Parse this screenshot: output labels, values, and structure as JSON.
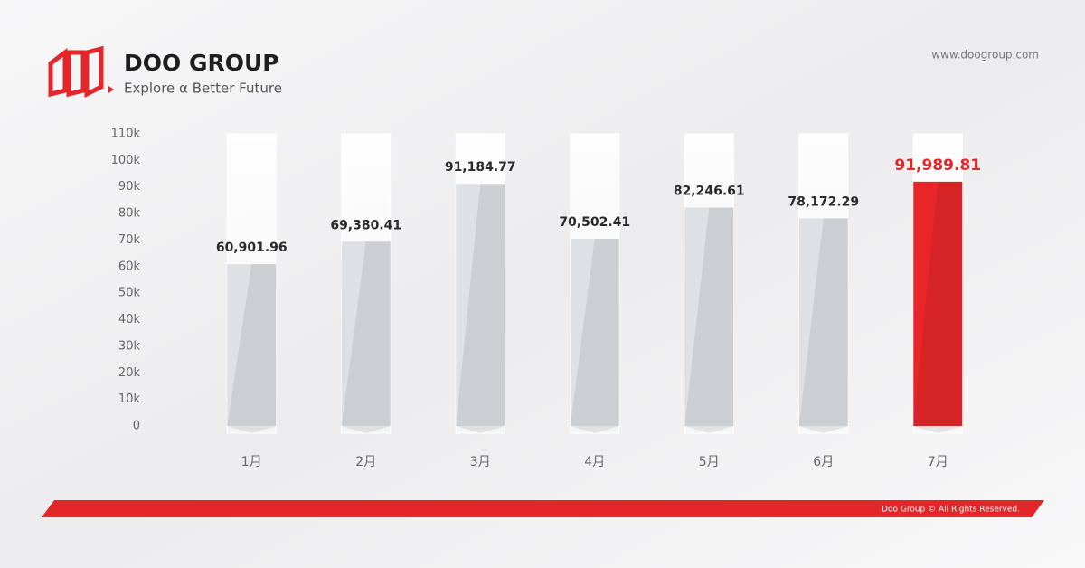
{
  "header": {
    "brand": "DOO GROUP",
    "tagline": "Explore α Better Future",
    "website": "www.doogroup.com"
  },
  "footer": {
    "copyright": "Doo Group © All Rights Reserved."
  },
  "chart_data": {
    "type": "bar",
    "categories": [
      "1月",
      "2月",
      "3月",
      "4月",
      "5月",
      "6月",
      "7月"
    ],
    "values": [
      60901.96,
      69380.41,
      91184.77,
      70502.41,
      82246.61,
      78172.29,
      91989.81
    ],
    "value_labels": [
      "60,901.96",
      "69,380.41",
      "91,184.77",
      "70,502.41",
      "82,246.61",
      "78,172.29",
      "91,989.81"
    ],
    "colors": [
      "#dde1e5",
      "#dde1e5",
      "#dde1e5",
      "#dde1e5",
      "#dde1e5",
      "#dde1e5",
      "#e8262a"
    ],
    "label_colors": [
      "#2a2a2a",
      "#2a2a2a",
      "#2a2a2a",
      "#2a2a2a",
      "#2a2a2a",
      "#2a2a2a",
      "#e3262a"
    ],
    "ylim": [
      0,
      110000
    ],
    "yticks": [
      0,
      {
        "value": 10000,
        "label": "10k"
      },
      {
        "value": 20000,
        "label": "20k"
      },
      {
        "value": 30000,
        "label": "30k"
      },
      {
        "value": 40000,
        "label": "40k"
      },
      {
        "value": 50000,
        "label": "50k"
      },
      {
        "value": 60000,
        "label": "60k"
      },
      {
        "value": 70000,
        "label": "70k"
      },
      {
        "value": 80000,
        "label": "80k"
      },
      {
        "value": 90000,
        "label": "90k"
      },
      {
        "value": 100000,
        "label": "100k"
      },
      {
        "value": 110000,
        "label": "110k"
      }
    ]
  }
}
